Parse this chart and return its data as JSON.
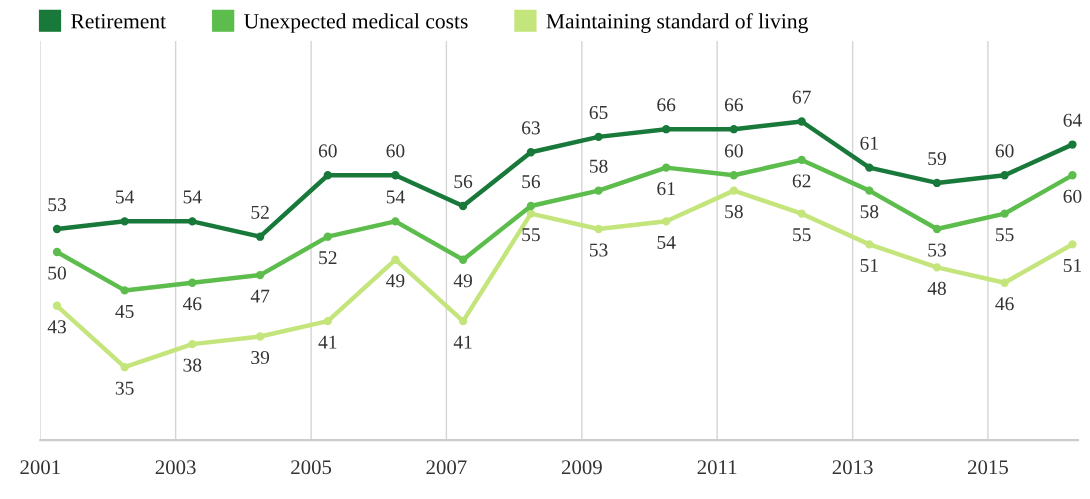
{
  "chart_data": {
    "type": "line",
    "x": [
      "2001-04",
      "2002-04",
      "2003-04",
      "2004-04",
      "2005-04",
      "2006-04",
      "2007-04",
      "2008-04",
      "2009-04",
      "2010-04",
      "2011-04",
      "2012-04",
      "2013-04",
      "2014-04",
      "2015-04",
      "2016-04"
    ],
    "series": [
      {
        "name": "Retirement",
        "color": "#18793a",
        "values": [
          53,
          54,
          54,
          52,
          60,
          60,
          56,
          63,
          65,
          66,
          66,
          67,
          61,
          59,
          60,
          64
        ]
      },
      {
        "name": "Unexpected medical costs",
        "color": "#5cbd4c",
        "values": [
          50,
          45,
          46,
          47,
          52,
          54,
          49,
          56,
          58,
          61,
          60,
          62,
          58,
          53,
          55,
          60
        ]
      },
      {
        "name": "Maintaining standard of living",
        "color": "#c4e57c",
        "values": [
          43,
          35,
          38,
          39,
          41,
          49,
          41,
          55,
          53,
          54,
          58,
          55,
          51,
          48,
          46,
          51
        ]
      }
    ],
    "xlim": [
      "2001-01",
      "2016-05"
    ],
    "xticks": [
      "2001",
      "2003",
      "2005",
      "2007",
      "2009",
      "2011",
      "2013",
      "2015"
    ],
    "tick_labels": "x",
    "grid": "x",
    "legend": "top left",
    "data_labels": true,
    "marker": "circle",
    "line_style": "solid"
  }
}
